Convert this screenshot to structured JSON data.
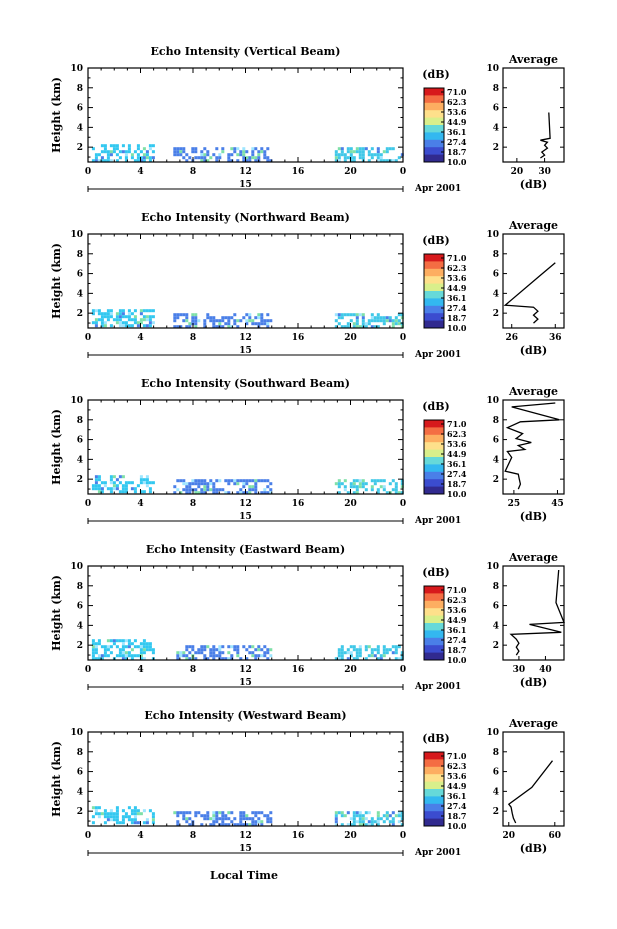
{
  "figure": {
    "xlabel": "Local Time",
    "x_ticks": [
      "0",
      "4",
      "8",
      "12",
      "16",
      "20",
      "0"
    ],
    "x_range": [
      0,
      24
    ],
    "date_day": "15",
    "date_label": "Apr 2001",
    "ylabel": "Height (km)",
    "y_ticks": [
      "2",
      "4",
      "6",
      "8",
      "10"
    ],
    "y_range": [
      0.5,
      10
    ],
    "colorbar_unit": "(dB)",
    "colorbar_levels": [
      "71.0",
      "62.3",
      "53.6",
      "44.9",
      "36.1",
      "27.4",
      "18.7",
      "10.0"
    ],
    "colorbar_colors": [
      "#d7191c",
      "#f46d43",
      "#fdae61",
      "#fee08b",
      "#d9ef8b",
      "#66d9d9",
      "#33b8f0",
      "#4a7fe8",
      "#3b4ccf",
      "#312a8f"
    ],
    "avg_title": "Average",
    "avg_xlabel": "(dB)"
  },
  "chart_data": [
    {
      "type": "heatmap",
      "title": "Echo Intensity (Vertical Beam)",
      "xlabel": "Local Time",
      "ylabel": "Height (km)",
      "xlim": [
        0,
        24
      ],
      "ylim": [
        0.5,
        10
      ],
      "echo_regions": [
        {
          "x": [
            0.3,
            5
          ],
          "y": [
            0.7,
            2.3
          ],
          "level": "18.7-36.1 dB",
          "color": "#33c8f0"
        },
        {
          "x": [
            6.5,
            14
          ],
          "y": [
            0.5,
            2.0
          ],
          "level": "10.0-18.7 dB",
          "color": "#4a7fe8"
        },
        {
          "x": [
            18.8,
            24
          ],
          "y": [
            0.6,
            2.0
          ],
          "level": "18.7-36.1 dB",
          "color": "#40c8e8"
        }
      ]
    },
    {
      "type": "line",
      "title": "Average",
      "xlabel": "(dB)",
      "ylabel": "Height (km)",
      "x_ticks": [
        "20",
        "30"
      ],
      "xlim": [
        15,
        37
      ],
      "ylim": [
        0.5,
        10
      ],
      "profile": [
        [
          28.5,
          0.9
        ],
        [
          30,
          1.2
        ],
        [
          29,
          1.5
        ],
        [
          31,
          1.9
        ],
        [
          30,
          2.2
        ],
        [
          31,
          2.5
        ],
        [
          28.5,
          2.7
        ],
        [
          32,
          2.9
        ],
        [
          31.5,
          5.5
        ]
      ]
    },
    {
      "type": "heatmap",
      "title": "Echo Intensity (Northward Beam)",
      "xlabel": "Local Time",
      "ylabel": "Height (km)",
      "xlim": [
        0,
        24
      ],
      "ylim": [
        0.5,
        10
      ],
      "echo_regions": [
        {
          "x": [
            0.3,
            5
          ],
          "y": [
            0.7,
            2.4
          ],
          "level": "18.7-36.1 dB",
          "color": "#33c8f0"
        },
        {
          "x": [
            6.5,
            14
          ],
          "y": [
            0.5,
            2.0
          ],
          "level": "10.0-18.7 dB",
          "color": "#4a7fe8"
        },
        {
          "x": [
            18.8,
            24
          ],
          "y": [
            0.6,
            2.0
          ],
          "level": "18.7-36.1 dB",
          "color": "#40c8e8"
        }
      ]
    },
    {
      "type": "line",
      "title": "Average",
      "xlabel": "(dB)",
      "ylabel": "Height (km)",
      "x_ticks": [
        "26",
        "36"
      ],
      "xlim": [
        24,
        38
      ],
      "ylim": [
        0.5,
        10
      ],
      "profile": [
        [
          31,
          1.0
        ],
        [
          32,
          1.4
        ],
        [
          31,
          1.8
        ],
        [
          32,
          2.2
        ],
        [
          31,
          2.6
        ],
        [
          24.5,
          2.8
        ],
        [
          32.5,
          5.8
        ],
        [
          36,
          7.1
        ]
      ]
    },
    {
      "type": "heatmap",
      "title": "Echo Intensity (Southward Beam)",
      "xlabel": "Local Time",
      "ylabel": "Height (km)",
      "xlim": [
        0,
        24
      ],
      "ylim": [
        0.5,
        10
      ],
      "echo_regions": [
        {
          "x": [
            0.3,
            5
          ],
          "y": [
            0.7,
            2.4
          ],
          "level": "18.7-36.1 dB",
          "color": "#33c8f0"
        },
        {
          "x": [
            6.5,
            14
          ],
          "y": [
            0.5,
            2.0
          ],
          "level": "10.0-18.7 dB",
          "color": "#4a7fe8"
        },
        {
          "x": [
            18.8,
            24
          ],
          "y": [
            0.6,
            2.0
          ],
          "level": "18.7-36.1 dB",
          "color": "#40c8e8"
        }
      ]
    },
    {
      "type": "line",
      "title": "Average",
      "xlabel": "(dB)",
      "ylabel": "Height (km)",
      "x_ticks": [
        "25",
        "45"
      ],
      "xlim": [
        20,
        48
      ],
      "ylim": [
        0.5,
        10
      ],
      "profile": [
        [
          27,
          1.0
        ],
        [
          28,
          1.5
        ],
        [
          27.5,
          2.0
        ],
        [
          27,
          2.5
        ],
        [
          21,
          2.8
        ],
        [
          24,
          4.2
        ],
        [
          22,
          4.8
        ],
        [
          30,
          5.0
        ],
        [
          27,
          5.4
        ],
        [
          33,
          5.7
        ],
        [
          26,
          6.1
        ],
        [
          29,
          6.6
        ],
        [
          22,
          7.2
        ],
        [
          28,
          7.8
        ],
        [
          46,
          8.0
        ],
        [
          24,
          9.3
        ],
        [
          44,
          9.7
        ]
      ]
    },
    {
      "type": "heatmap",
      "title": "Echo Intensity (Eastward Beam)",
      "xlabel": "Local Time",
      "ylabel": "Height (km)",
      "xlim": [
        0,
        24
      ],
      "ylim": [
        0.5,
        10
      ],
      "echo_regions": [
        {
          "x": [
            0.3,
            5
          ],
          "y": [
            0.7,
            2.6
          ],
          "level": "18.7-36.1 dB",
          "color": "#33c8f0"
        },
        {
          "x": [
            6.5,
            14
          ],
          "y": [
            0.5,
            2.0
          ],
          "level": "10.0-18.7 dB",
          "color": "#4a7fe8"
        },
        {
          "x": [
            18.8,
            24
          ],
          "y": [
            0.6,
            2.0
          ],
          "level": "18.7-36.1 dB",
          "color": "#40c8e8"
        }
      ]
    },
    {
      "type": "line",
      "title": "Average",
      "xlabel": "(dB)",
      "ylabel": "Height (km)",
      "x_ticks": [
        "30",
        "40"
      ],
      "xlim": [
        24,
        47
      ],
      "ylim": [
        0.5,
        10
      ],
      "profile": [
        [
          29,
          1.0
        ],
        [
          30,
          1.4
        ],
        [
          29,
          1.8
        ],
        [
          30,
          2.2
        ],
        [
          29,
          2.6
        ],
        [
          27,
          3.1
        ],
        [
          46,
          3.3
        ],
        [
          34,
          4.1
        ],
        [
          47,
          4.3
        ],
        [
          44,
          6.3
        ],
        [
          45,
          9.6
        ]
      ]
    },
    {
      "type": "heatmap",
      "title": "Echo Intensity (Westward Beam)",
      "xlabel": "Local Time",
      "ylabel": "Height (km)",
      "xlim": [
        0,
        24
      ],
      "ylim": [
        0.5,
        10
      ],
      "echo_regions": [
        {
          "x": [
            0.3,
            5
          ],
          "y": [
            0.7,
            2.5
          ],
          "level": "18.7-36.1 dB",
          "color": "#33c8f0"
        },
        {
          "x": [
            6.5,
            14
          ],
          "y": [
            0.5,
            2.0
          ],
          "level": "10.0-18.7 dB",
          "color": "#4a7fe8"
        },
        {
          "x": [
            18.8,
            24
          ],
          "y": [
            0.6,
            2.0
          ],
          "level": "18.7-36.1 dB",
          "color": "#40c8e8"
        }
      ]
    },
    {
      "type": "line",
      "title": "Average",
      "xlabel": "(dB)",
      "ylabel": "Height (km)",
      "x_ticks": [
        "20",
        "60"
      ],
      "xlim": [
        15,
        68
      ],
      "ylim": [
        0.5,
        10
      ],
      "profile": [
        [
          26,
          0.8
        ],
        [
          24,
          1.3
        ],
        [
          23,
          1.8
        ],
        [
          22,
          2.4
        ],
        [
          20,
          2.7
        ],
        [
          40,
          4.4
        ],
        [
          58,
          7.1
        ]
      ]
    }
  ]
}
